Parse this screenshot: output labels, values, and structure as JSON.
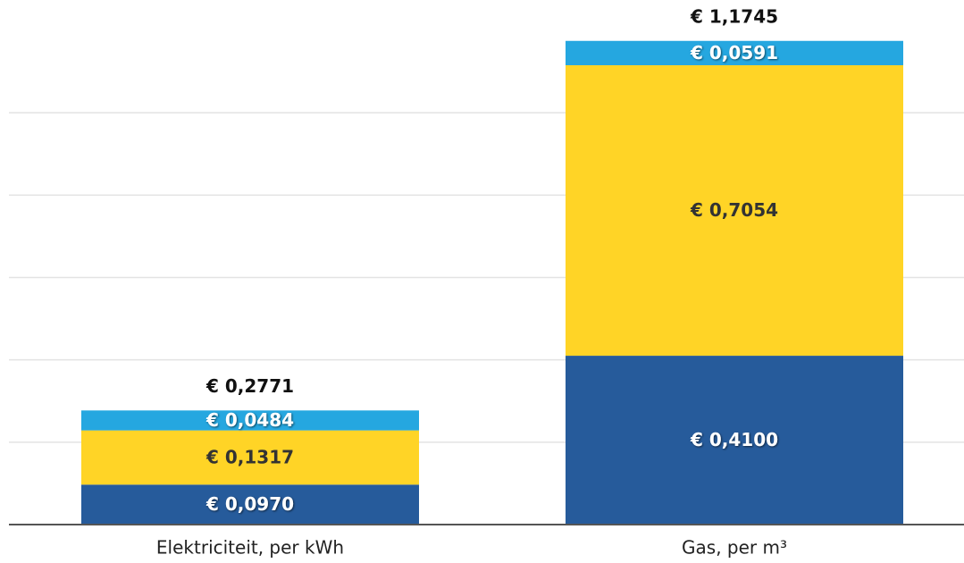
{
  "chart_data": {
    "type": "stacked_bar",
    "categories": [
      "Elektriciteit, per kWh",
      "Gas, per m³"
    ],
    "series": [
      {
        "color": "#265b9b",
        "label_color": "#ffffff",
        "values": [
          0.097,
          0.41
        ],
        "value_labels": [
          "€ 0,0970",
          "€ 0,4100"
        ]
      },
      {
        "color": "#ffd426",
        "label_color": "#333333",
        "values": [
          0.1317,
          0.7054
        ],
        "value_labels": [
          "€ 0,1317",
          "€ 0,7054"
        ]
      },
      {
        "color": "#25a7e0",
        "label_color": "#ffffff",
        "values": [
          0.0484,
          0.0591
        ],
        "value_labels": [
          "€ 0,0484",
          "€ 0,0591"
        ]
      }
    ],
    "totals": [
      0.2771,
      1.1745
    ],
    "total_labels": [
      "€ 0,2771",
      "€ 1,1745"
    ],
    "ylim": [
      0,
      1.2
    ],
    "yticks": [
      0,
      0.2,
      0.4,
      0.6,
      0.8,
      1
    ],
    "grid": true
  }
}
